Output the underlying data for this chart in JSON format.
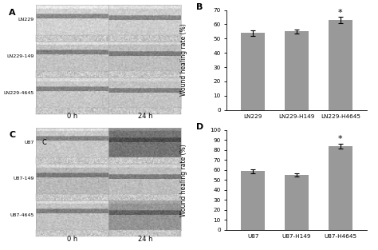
{
  "panel_B": {
    "categories": [
      "LN229",
      "LN229-H149",
      "LN229-H4645"
    ],
    "values": [
      54.0,
      55.0,
      63.0
    ],
    "errors": [
      2.0,
      1.5,
      2.0
    ],
    "ylabel": "Wound healing rate (%)",
    "ylim": [
      0,
      70
    ],
    "yticks": [
      0,
      10,
      20,
      30,
      40,
      50,
      60,
      70
    ],
    "label": "B",
    "star_index": 2,
    "bar_color": "#999999"
  },
  "panel_D": {
    "categories": [
      "U87",
      "U87-H149",
      "U87-H4645"
    ],
    "values": [
      59.0,
      55.0,
      84.0
    ],
    "errors": [
      2.0,
      1.5,
      2.5
    ],
    "ylabel": "Wound healing rate (%)",
    "ylim": [
      0,
      100
    ],
    "yticks": [
      0,
      10,
      20,
      30,
      40,
      50,
      60,
      70,
      80,
      90,
      100
    ],
    "label": "D",
    "star_index": 2,
    "bar_color": "#999999"
  },
  "panel_A": {
    "label": "A",
    "rows": [
      "LN229",
      "LN229-149",
      "LN229-4645"
    ],
    "col_labels": [
      "0 h",
      "24 h"
    ]
  },
  "panel_C": {
    "label": "C",
    "rows": [
      "U87",
      "U87-149",
      "U87-4645"
    ],
    "col_labels": [
      "0 h",
      "24 h"
    ],
    "C_label_row": 1
  },
  "background_color": "#ffffff",
  "fig_width": 4.74,
  "fig_height": 3.13
}
